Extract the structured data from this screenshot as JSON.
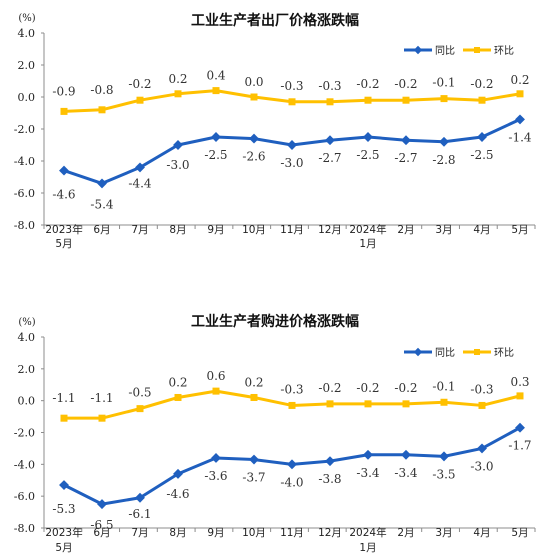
{
  "colors": {
    "yoy": "#1f5fbf",
    "mom": "#ffc000"
  },
  "chart_data": [
    {
      "type": "line",
      "title": "工业生产者出厂价格涨跌幅",
      "unit": "(%)",
      "ylim": [
        -8.0,
        4.0
      ],
      "yticks": [
        "4.0",
        "2.0",
        "0.0",
        "-2.0",
        "-4.0",
        "-6.0",
        "-8.0"
      ],
      "categories": [
        [
          "2023年",
          "5月"
        ],
        [
          "6月"
        ],
        [
          "7月"
        ],
        [
          "8月"
        ],
        [
          "9月"
        ],
        [
          "10月"
        ],
        [
          "11月"
        ],
        [
          "12月"
        ],
        [
          "2024年",
          "1月"
        ],
        [
          "2月"
        ],
        [
          "3月"
        ],
        [
          "4月"
        ],
        [
          "5月"
        ]
      ],
      "legend": {
        "position": "top-right"
      },
      "series": [
        {
          "name": "同比",
          "values": [
            -4.6,
            -5.4,
            -4.4,
            -3.0,
            -2.5,
            -2.6,
            -3.0,
            -2.7,
            -2.5,
            -2.7,
            -2.8,
            -2.5,
            -1.4
          ]
        },
        {
          "name": "环比",
          "values": [
            -0.9,
            -0.8,
            -0.2,
            0.2,
            0.4,
            0.0,
            -0.3,
            -0.3,
            -0.2,
            -0.2,
            -0.1,
            -0.2,
            0.2
          ]
        }
      ]
    },
    {
      "type": "line",
      "title": "工业生产者购进价格涨跌幅",
      "unit": "(%)",
      "ylim": [
        -8.0,
        4.0
      ],
      "yticks": [
        "4.0",
        "2.0",
        "0.0",
        "-2.0",
        "-4.0",
        "-6.0",
        "-8.0"
      ],
      "categories": [
        [
          "2023年",
          "5月"
        ],
        [
          "6月"
        ],
        [
          "7月"
        ],
        [
          "8月"
        ],
        [
          "9月"
        ],
        [
          "10月"
        ],
        [
          "11月"
        ],
        [
          "12月"
        ],
        [
          "2024年",
          "1月"
        ],
        [
          "2月"
        ],
        [
          "3月"
        ],
        [
          "4月"
        ],
        [
          "5月"
        ]
      ],
      "legend": {
        "position": "top-right"
      },
      "series": [
        {
          "name": "同比",
          "values": [
            -5.3,
            -6.5,
            -6.1,
            -4.6,
            -3.6,
            -3.7,
            -4.0,
            -3.8,
            -3.4,
            -3.4,
            -3.5,
            -3.0,
            -1.7
          ]
        },
        {
          "name": "环比",
          "values": [
            -1.1,
            -1.1,
            -0.5,
            0.2,
            0.6,
            0.2,
            -0.3,
            -0.2,
            -0.2,
            -0.2,
            -0.1,
            -0.3,
            0.3
          ]
        }
      ]
    }
  ]
}
